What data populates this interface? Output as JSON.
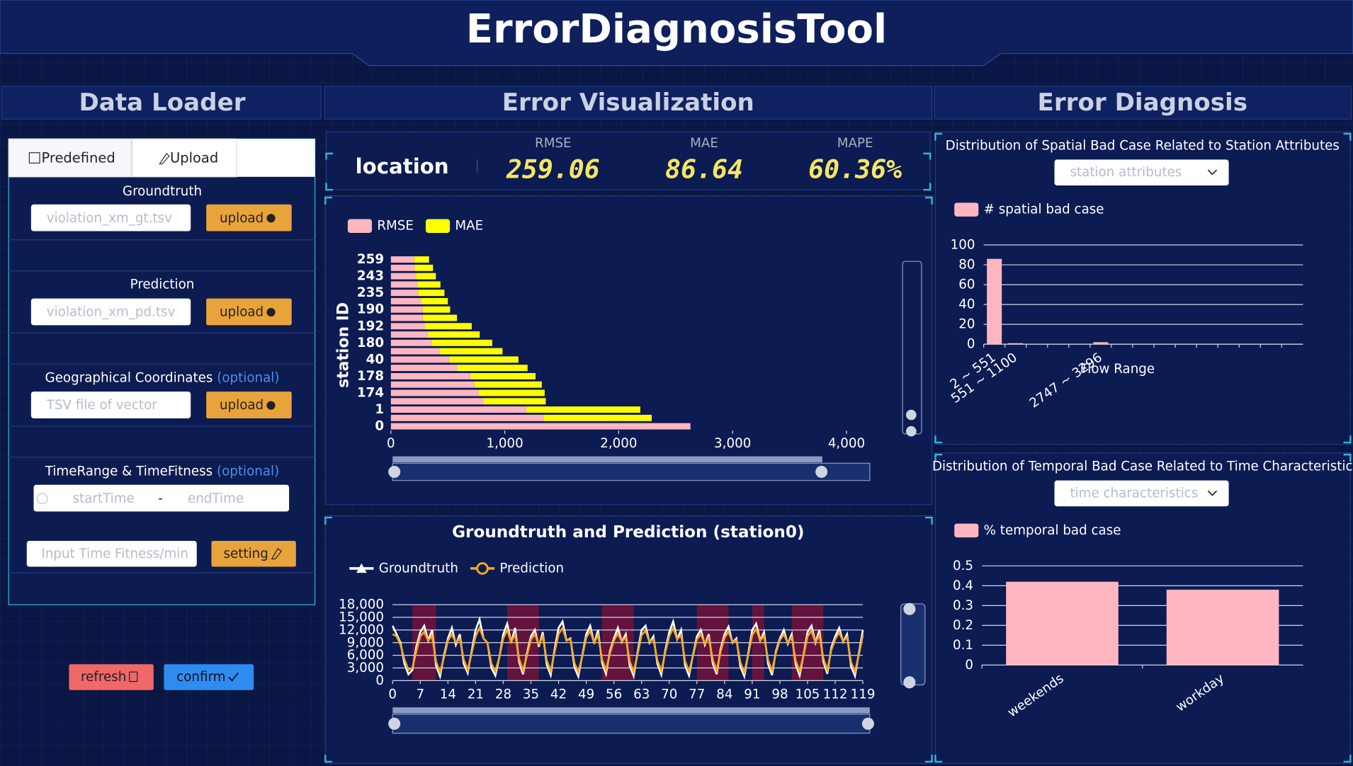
{
  "header": {
    "title": "ErrorDiagnosisTool"
  },
  "data_loader": {
    "title": "Data Loader",
    "tabs": [
      "Predefined",
      "Upload"
    ],
    "fields": [
      {
        "label": "Groundtruth",
        "placeholder": "violation_xm_gt.tsv",
        "button": "upload"
      },
      {
        "label": "Prediction",
        "placeholder": "violation_xm_pd.tsv",
        "button": "upload"
      },
      {
        "label": "Geographical Coordinates",
        "optional": "(optional)",
        "placeholder": "TSV file of vector",
        "button": "upload"
      }
    ],
    "time_range": {
      "label": "TimeRange & TimeFitness",
      "optional": "(optional)",
      "start": "startTime",
      "separator": "-",
      "end": "endTime"
    },
    "fitness": {
      "placeholder": "Input Time Fitness/min",
      "button": "setting"
    },
    "actions": [
      "refresh",
      "confirm"
    ]
  },
  "error_visualization": {
    "title": "Error Visualization",
    "location": "location",
    "metrics": [
      {
        "name": "RMSE",
        "value": "259.06"
      },
      {
        "name": "MAE",
        "value": "86.64"
      },
      {
        "name": "MAPE",
        "value": "60.36%"
      }
    ]
  },
  "error_diagnosis": {
    "title": "Error Diagnosis",
    "spatial_select": "station attributes",
    "temporal_select": "time characteristics"
  },
  "chart_data": [
    {
      "type": "bar",
      "orientation": "horizontal",
      "stacked": true,
      "ylabel": "station ID",
      "categories": [
        "0",
        null,
        "1",
        null,
        "174",
        null,
        "178",
        null,
        "40",
        null,
        "180",
        null,
        "192",
        null,
        "190",
        null,
        "235",
        null,
        "243",
        null,
        "259"
      ],
      "series": [
        {
          "name": "RMSE",
          "color": "#ffb6c1",
          "values": [
            2630,
            1340,
            1190,
            810,
            770,
            735,
            700,
            580,
            510,
            430,
            360,
            320,
            300,
            280,
            280,
            265,
            240,
            235,
            220,
            210,
            205
          ]
        },
        {
          "name": "MAE",
          "color": "#ffff00",
          "values": [
            0,
            950,
            1000,
            550,
            580,
            590,
            570,
            620,
            610,
            550,
            530,
            460,
            410,
            300,
            240,
            235,
            230,
            200,
            175,
            160,
            130
          ]
        }
      ],
      "xlim": [
        0,
        4000
      ],
      "xticks": [
        0,
        {
          "value": 1000,
          "label": "1,000"
        },
        {
          "value": 2000,
          "label": "2,000"
        },
        {
          "value": 3000,
          "label": "3,000"
        },
        {
          "value": 4000,
          "label": "4,000"
        }
      ],
      "grid": false
    },
    {
      "type": "line",
      "title": "Groundtruth and Prediction (station0)",
      "x": [
        0,
        1,
        2,
        3,
        4,
        5,
        6,
        7,
        8,
        9,
        10,
        11,
        12,
        13,
        14,
        15,
        16,
        17,
        18,
        19,
        20,
        21,
        22,
        23,
        24,
        25,
        26,
        27,
        28,
        29,
        30,
        31,
        32,
        33,
        34,
        35,
        36,
        37,
        38,
        39,
        40,
        41,
        42,
        43,
        44,
        45,
        46,
        47,
        48,
        49,
        50,
        51,
        52,
        53,
        54,
        55,
        56,
        57,
        58,
        59,
        60,
        61,
        62,
        63,
        64,
        65,
        66,
        67,
        68,
        69,
        70,
        71,
        72,
        73,
        74,
        75,
        76,
        77,
        78,
        79,
        80,
        81,
        82,
        83,
        84,
        85,
        86,
        87,
        88,
        89,
        90,
        91,
        92,
        93,
        94,
        95,
        96,
        97,
        98,
        99,
        100,
        101,
        102,
        103,
        104,
        105,
        106,
        107,
        108,
        109,
        110,
        111,
        112,
        113,
        114,
        115,
        116,
        117,
        118,
        119
      ],
      "series": [
        {
          "name": "Groundtruth",
          "color": "#ffffff",
          "values": [
            13000,
            11000,
            9000,
            4000,
            1500,
            2500,
            8000,
            11500,
            13000,
            9500,
            12000,
            3500,
            1000,
            6000,
            10000,
            12500,
            8500,
            11000,
            4000,
            1800,
            7000,
            12000,
            14500,
            10000,
            9000,
            3000,
            1200,
            5500,
            11000,
            13500,
            9000,
            12500,
            4500,
            1500,
            6500,
            10500,
            12000,
            8000,
            11500,
            3800,
            1300,
            7500,
            12500,
            14000,
            9500,
            10000,
            3200,
            1000,
            6000,
            11000,
            13000,
            8800,
            12000,
            4200,
            1600,
            7000,
            10000,
            12500,
            9200,
            11000,
            3500,
            1100,
            6800,
            12000,
            13000,
            9000,
            10500,
            4000,
            1400,
            7200,
            11500,
            14000,
            9800,
            12000,
            3600,
            1200,
            6000,
            10500,
            12000,
            8500,
            11000,
            4100,
            1500,
            7500,
            11000,
            12800,
            9000,
            10000,
            3300,
            1000,
            6500,
            12000,
            13500,
            9500,
            11500,
            4000,
            1300,
            7000,
            10000,
            12000,
            8700,
            11000,
            3800,
            1200,
            6200,
            11500,
            13000,
            9000,
            12000,
            4500,
            1600,
            7800,
            10500,
            12500,
            9200,
            11000,
            3400,
            1100,
            6600,
            12000
          ]
        },
        {
          "name": "Prediction",
          "color": "#f5a623",
          "values": [
            11000,
            10500,
            8500,
            5000,
            2500,
            3000,
            7000,
            10500,
            11500,
            9500,
            10500,
            4500,
            2000,
            5500,
            9500,
            11000,
            9000,
            10000,
            5000,
            2500,
            6500,
            10500,
            12500,
            10000,
            9000,
            4000,
            2200,
            5500,
            10000,
            12000,
            9200,
            11000,
            5200,
            2400,
            6000,
            9800,
            11000,
            8500,
            10500,
            4800,
            2300,
            6800,
            11000,
            12500,
            9500,
            9800,
            4200,
            2000,
            5800,
            10200,
            11800,
            9000,
            10800,
            5000,
            2500,
            6500,
            9500,
            11200,
            9300,
            10200,
            4500,
            2100,
            6300,
            10800,
            11800,
            9200,
            9800,
            4800,
            2300,
            6700,
            10500,
            12500,
            9800,
            10800,
            4600,
            2200,
            5800,
            9800,
            11000,
            8800,
            10200,
            5000,
            2400,
            6900,
            10200,
            11600,
            9100,
            9600,
            4300,
            2000,
            6100,
            10800,
            12200,
            9500,
            10600,
            4900,
            2300,
            6600,
            9600,
            11000,
            8900,
            10300,
            4700,
            2200,
            6000,
            10500,
            11800,
            9100,
            10800,
            5300,
            2500,
            7200,
            9800,
            11400,
            9300,
            10300,
            4400,
            2100,
            6200,
            10800
          ]
        }
      ],
      "bands": [
        [
          5,
          11
        ],
        [
          29,
          37
        ],
        [
          53,
          61
        ],
        [
          77,
          85
        ],
        [
          91,
          94
        ],
        [
          101,
          109
        ]
      ],
      "xlim": [
        0,
        119
      ],
      "xticks": [
        0,
        7,
        14,
        21,
        28,
        35,
        42,
        49,
        56,
        63,
        70,
        77,
        84,
        91,
        98,
        105,
        112,
        119
      ],
      "ylim": [
        0,
        18000
      ],
      "yticks": [
        0,
        {
          "value": 3000,
          "label": "3,000"
        },
        {
          "value": 6000,
          "label": "6,000"
        },
        {
          "value": 9000,
          "label": "9,000"
        },
        {
          "value": 12000,
          "label": "12,000"
        },
        {
          "value": 15000,
          "label": "15,000"
        },
        {
          "value": 18000,
          "label": "18,000"
        }
      ],
      "grid": true
    },
    {
      "type": "bar",
      "title": "Distribution of Spatial Bad Case Related to Station Attributes",
      "xlabel": "Flow Range",
      "categories": [
        "2 ~ 551",
        "551 ~ 1100",
        null,
        null,
        null,
        "2747 ~ 3296",
        null,
        null,
        null,
        null,
        null,
        null,
        null,
        null,
        null
      ],
      "series": [
        {
          "name": "# spatial bad case",
          "color": "#ffb6c1",
          "values": [
            86,
            1,
            0,
            0,
            0,
            2,
            0,
            0,
            0,
            0,
            0,
            0,
            0,
            0,
            0
          ]
        }
      ],
      "ylim": [
        0,
        100
      ],
      "yticks": [
        0,
        20,
        40,
        60,
        80,
        100
      ],
      "grid": true
    },
    {
      "type": "bar",
      "title": "Distribution of Temporal Bad Case Related to Time Characteristic",
      "categories": [
        "weekends",
        "workday"
      ],
      "series": [
        {
          "name": "% temporal bad case",
          "color": "#ffb6c1",
          "values": [
            0.42,
            0.38
          ]
        }
      ],
      "ylim": [
        0,
        0.5
      ],
      "yticks": [
        0,
        0.1,
        0.2,
        0.3,
        0.4,
        0.5
      ],
      "grid": true
    }
  ]
}
